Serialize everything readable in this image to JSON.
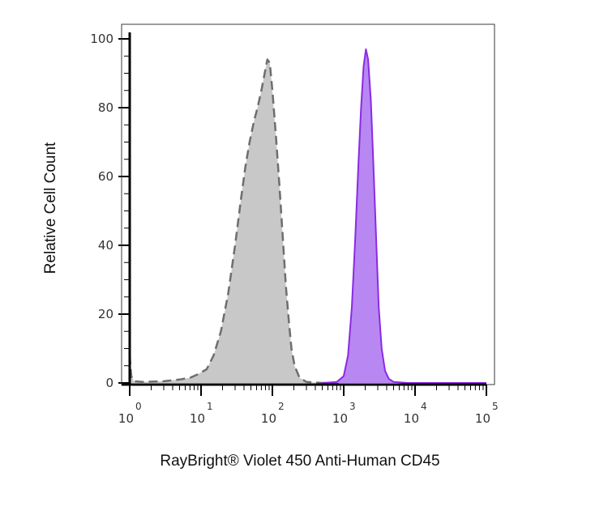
{
  "chart_data": {
    "type": "area",
    "xlabel": "RayBright® Violet 450 Anti-Human CD45",
    "ylabel": "Relative Cell Count",
    "x_scale": "log10",
    "xlim": [
      1,
      100000
    ],
    "ylim": [
      0,
      100
    ],
    "y_ticks": [
      0,
      20,
      40,
      60,
      80,
      100
    ],
    "x_ticks": [
      {
        "value": 1,
        "base": "10",
        "exp": "0"
      },
      {
        "value": 10,
        "base": "10",
        "exp": "1"
      },
      {
        "value": 100,
        "base": "10",
        "exp": "2"
      },
      {
        "value": 1000,
        "base": "10",
        "exp": "3"
      },
      {
        "value": 10000,
        "base": "10",
        "exp": "4"
      },
      {
        "value": 100000,
        "base": "10",
        "exp": "5"
      }
    ],
    "grid": false,
    "series": [
      {
        "color": "#c8c8c8",
        "line_color": "#6e6e6e",
        "line_style": "dashed",
        "points": [
          [
            1.0,
            8
          ],
          [
            1.05,
            2
          ],
          [
            1.15,
            0.5
          ],
          [
            1.5,
            0.3
          ],
          [
            3,
            0.5
          ],
          [
            5,
            1.0
          ],
          [
            7,
            1.5
          ],
          [
            9,
            2.5
          ],
          [
            12,
            4
          ],
          [
            15,
            8
          ],
          [
            19,
            15
          ],
          [
            24,
            26
          ],
          [
            30,
            40
          ],
          [
            36,
            53
          ],
          [
            42,
            63
          ],
          [
            48,
            70
          ],
          [
            55,
            76
          ],
          [
            62,
            80
          ],
          [
            70,
            85
          ],
          [
            78,
            90
          ],
          [
            85,
            94
          ],
          [
            92,
            93
          ],
          [
            100,
            85
          ],
          [
            112,
            72
          ],
          [
            125,
            58
          ],
          [
            140,
            42
          ],
          [
            155,
            28
          ],
          [
            170,
            18
          ],
          [
            185,
            10
          ],
          [
            205,
            5
          ],
          [
            240,
            1.5
          ],
          [
            300,
            0.3
          ],
          [
            500,
            0
          ],
          [
            1000,
            0
          ]
        ]
      },
      {
        "color": "#b887f2",
        "line_color": "#8a2be2",
        "line_style": "solid",
        "points": [
          [
            500,
            0
          ],
          [
            800,
            0.3
          ],
          [
            1000,
            2
          ],
          [
            1150,
            8
          ],
          [
            1300,
            22
          ],
          [
            1450,
            42
          ],
          [
            1600,
            63
          ],
          [
            1750,
            80
          ],
          [
            1900,
            92
          ],
          [
            2050,
            97
          ],
          [
            2200,
            94
          ],
          [
            2400,
            82
          ],
          [
            2600,
            64
          ],
          [
            2850,
            42
          ],
          [
            3100,
            22
          ],
          [
            3400,
            10
          ],
          [
            3800,
            3.5
          ],
          [
            4300,
            1.2
          ],
          [
            5000,
            0.3
          ],
          [
            8000,
            0
          ],
          [
            100000,
            0
          ]
        ]
      }
    ]
  }
}
